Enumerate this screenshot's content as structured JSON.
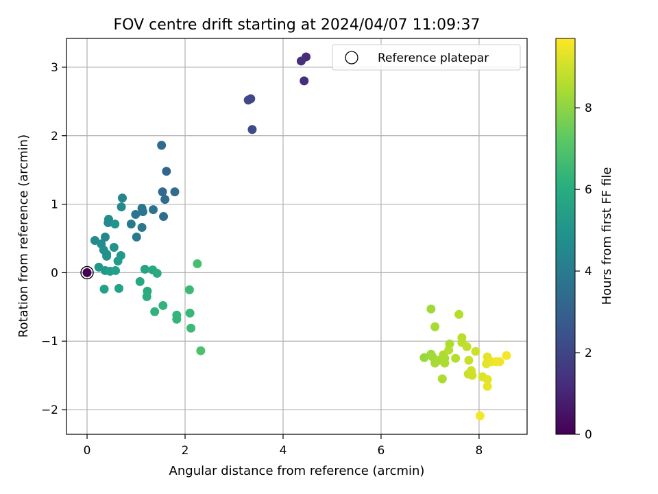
{
  "chart_data": {
    "type": "scatter",
    "title": "FOV centre drift starting at 2024/04/07 11:09:37",
    "xlabel": "Angular distance from reference (arcmin)",
    "ylabel": "Rotation from reference (arcmin)",
    "xlim": [
      -0.42,
      8.98
    ],
    "ylim": [
      -2.36,
      3.42
    ],
    "xticks": [
      0,
      2,
      4,
      6,
      8
    ],
    "yticks": [
      -2,
      -1,
      0,
      1,
      2,
      3
    ],
    "grid": true,
    "legend": {
      "placement": "top-right",
      "entries": [
        "Reference platepar"
      ]
    },
    "reference_point": {
      "x": 0,
      "y": 0,
      "label": "Reference platepar"
    },
    "colorbar": {
      "label": "Hours from first FF file",
      "range": [
        0,
        9.7
      ],
      "ticks": [
        0,
        2,
        4,
        6,
        8
      ],
      "colormap": "viridis"
    },
    "points": [
      {
        "x": 0.0,
        "y": 0.0,
        "c": 0.0
      },
      {
        "x": 4.47,
        "y": 3.15,
        "c": 1.2
      },
      {
        "x": 4.37,
        "y": 3.09,
        "c": 1.3
      },
      {
        "x": 4.43,
        "y": 2.8,
        "c": 1.3
      },
      {
        "x": 3.34,
        "y": 2.54,
        "c": 2.1
      },
      {
        "x": 3.29,
        "y": 2.52,
        "c": 2.1
      },
      {
        "x": 3.37,
        "y": 2.09,
        "c": 2.2
      },
      {
        "x": 1.52,
        "y": 1.86,
        "c": 3.3
      },
      {
        "x": 1.62,
        "y": 1.48,
        "c": 3.2
      },
      {
        "x": 1.54,
        "y": 1.18,
        "c": 3.3
      },
      {
        "x": 1.79,
        "y": 1.18,
        "c": 3.4
      },
      {
        "x": 1.59,
        "y": 1.07,
        "c": 3.4
      },
      {
        "x": 1.56,
        "y": 0.82,
        "c": 3.5
      },
      {
        "x": 1.35,
        "y": 0.92,
        "c": 3.7
      },
      {
        "x": 1.12,
        "y": 0.94,
        "c": 3.8
      },
      {
        "x": 1.14,
        "y": 0.89,
        "c": 3.8
      },
      {
        "x": 0.99,
        "y": 0.85,
        "c": 3.8
      },
      {
        "x": 1.12,
        "y": 0.66,
        "c": 3.9
      },
      {
        "x": 0.9,
        "y": 0.71,
        "c": 4.0
      },
      {
        "x": 1.01,
        "y": 0.52,
        "c": 3.9
      },
      {
        "x": 0.72,
        "y": 1.09,
        "c": 4.4
      },
      {
        "x": 0.7,
        "y": 0.96,
        "c": 4.6
      },
      {
        "x": 0.44,
        "y": 0.78,
        "c": 4.8
      },
      {
        "x": 0.43,
        "y": 0.73,
        "c": 4.6
      },
      {
        "x": 0.57,
        "y": 0.71,
        "c": 5.0
      },
      {
        "x": 0.37,
        "y": 0.52,
        "c": 4.5
      },
      {
        "x": 0.16,
        "y": 0.47,
        "c": 4.6
      },
      {
        "x": 0.29,
        "y": 0.42,
        "c": 4.7
      },
      {
        "x": 0.34,
        "y": 0.33,
        "c": 4.8
      },
      {
        "x": 0.55,
        "y": 0.37,
        "c": 5.0
      },
      {
        "x": 0.4,
        "y": 0.27,
        "c": 4.9
      },
      {
        "x": 0.4,
        "y": 0.24,
        "c": 4.9
      },
      {
        "x": 0.69,
        "y": 0.25,
        "c": 5.2
      },
      {
        "x": 0.63,
        "y": 0.17,
        "c": 5.3
      },
      {
        "x": 0.24,
        "y": 0.08,
        "c": 5.1
      },
      {
        "x": 0.37,
        "y": 0.03,
        "c": 5.2
      },
      {
        "x": 0.47,
        "y": 0.02,
        "c": 5.4
      },
      {
        "x": 0.58,
        "y": 0.03,
        "c": 5.5
      },
      {
        "x": 0.35,
        "y": -0.24,
        "c": 5.6
      },
      {
        "x": 0.65,
        "y": -0.23,
        "c": 5.6
      },
      {
        "x": 1.18,
        "y": 0.05,
        "c": 5.7
      },
      {
        "x": 1.34,
        "y": 0.04,
        "c": 5.8
      },
      {
        "x": 1.43,
        "y": -0.01,
        "c": 5.9
      },
      {
        "x": 1.08,
        "y": -0.13,
        "c": 5.8
      },
      {
        "x": 1.23,
        "y": -0.27,
        "c": 5.9
      },
      {
        "x": 1.22,
        "y": -0.35,
        "c": 6.0
      },
      {
        "x": 1.38,
        "y": -0.57,
        "c": 6.2
      },
      {
        "x": 1.55,
        "y": -0.48,
        "c": 6.3
      },
      {
        "x": 1.83,
        "y": -0.62,
        "c": 6.4
      },
      {
        "x": 1.83,
        "y": -0.68,
        "c": 6.4
      },
      {
        "x": 2.09,
        "y": -0.25,
        "c": 6.6
      },
      {
        "x": 2.1,
        "y": -0.59,
        "c": 6.5
      },
      {
        "x": 2.12,
        "y": -0.81,
        "c": 6.6
      },
      {
        "x": 2.25,
        "y": 0.13,
        "c": 6.8
      },
      {
        "x": 2.32,
        "y": -1.14,
        "c": 6.9
      },
      {
        "x": 7.02,
        "y": -0.53,
        "c": 8.3
      },
      {
        "x": 7.1,
        "y": -0.79,
        "c": 8.4
      },
      {
        "x": 7.59,
        "y": -0.61,
        "c": 8.6
      },
      {
        "x": 7.65,
        "y": -0.95,
        "c": 8.7
      },
      {
        "x": 7.4,
        "y": -1.04,
        "c": 8.5
      },
      {
        "x": 7.65,
        "y": -1.02,
        "c": 8.7
      },
      {
        "x": 7.75,
        "y": -1.08,
        "c": 8.8
      },
      {
        "x": 7.93,
        "y": -1.15,
        "c": 9.0
      },
      {
        "x": 6.88,
        "y": -1.24,
        "c": 8.2
      },
      {
        "x": 7.02,
        "y": -1.19,
        "c": 8.3
      },
      {
        "x": 7.05,
        "y": -1.23,
        "c": 8.3
      },
      {
        "x": 7.18,
        "y": -1.28,
        "c": 8.4
      },
      {
        "x": 7.1,
        "y": -1.32,
        "c": 8.4
      },
      {
        "x": 7.27,
        "y": -1.2,
        "c": 8.5
      },
      {
        "x": 7.3,
        "y": -1.25,
        "c": 8.5
      },
      {
        "x": 7.38,
        "y": -1.13,
        "c": 8.6
      },
      {
        "x": 7.52,
        "y": -1.25,
        "c": 8.6
      },
      {
        "x": 7.3,
        "y": -1.32,
        "c": 8.5
      },
      {
        "x": 7.79,
        "y": -1.28,
        "c": 8.9
      },
      {
        "x": 7.78,
        "y": -1.48,
        "c": 8.9
      },
      {
        "x": 7.84,
        "y": -1.43,
        "c": 9.0
      },
      {
        "x": 7.86,
        "y": -1.5,
        "c": 9.0
      },
      {
        "x": 7.25,
        "y": -1.55,
        "c": 8.5
      },
      {
        "x": 8.17,
        "y": -1.23,
        "c": 9.3
      },
      {
        "x": 8.15,
        "y": -1.33,
        "c": 9.3
      },
      {
        "x": 8.25,
        "y": -1.3,
        "c": 9.4
      },
      {
        "x": 8.35,
        "y": -1.3,
        "c": 9.5
      },
      {
        "x": 8.42,
        "y": -1.3,
        "c": 9.5
      },
      {
        "x": 8.56,
        "y": -1.21,
        "c": 9.6
      },
      {
        "x": 8.07,
        "y": -1.52,
        "c": 9.2
      },
      {
        "x": 8.17,
        "y": -1.56,
        "c": 9.3
      },
      {
        "x": 8.17,
        "y": -1.66,
        "c": 9.4
      },
      {
        "x": 8.02,
        "y": -2.09,
        "c": 9.6
      }
    ]
  }
}
